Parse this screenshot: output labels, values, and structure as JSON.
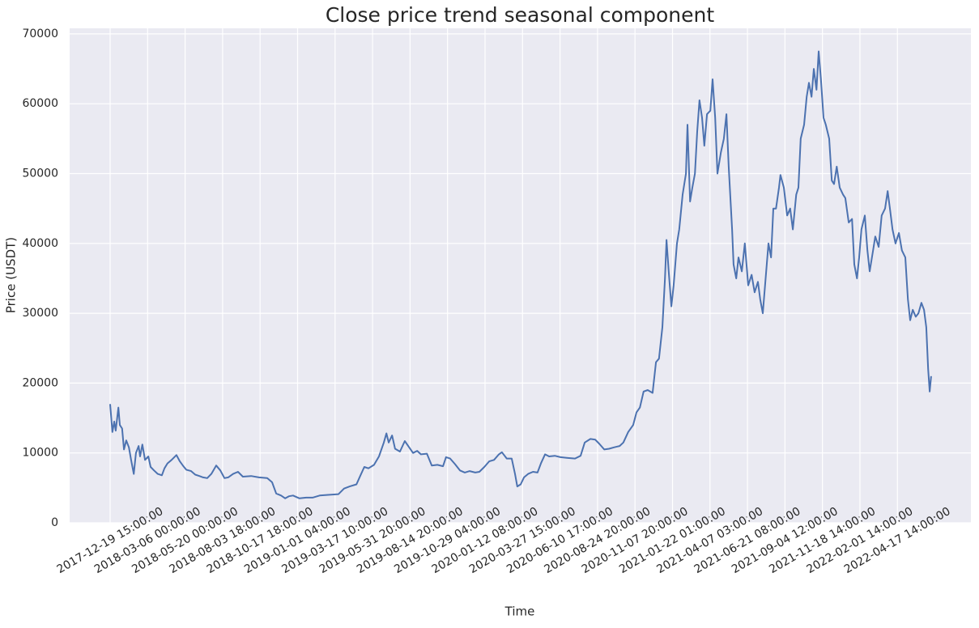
{
  "chart_data": {
    "type": "line",
    "title": "Close price trend seasonal component",
    "x_label": "Time",
    "y_label": "Price (USDT)",
    "grid": true,
    "background": "#eaeaf2",
    "xlim": [
      -1.08,
      22.96
    ],
    "ylim": [
      0,
      70800
    ],
    "xticks": [
      {
        "value": 0,
        "label": "2017-12-19 15:00:00"
      },
      {
        "value": 1,
        "label": "2018-03-06 00:00:00"
      },
      {
        "value": 2,
        "label": "2018-05-20 00:00:00"
      },
      {
        "value": 3,
        "label": "2018-08-03 18:00:00"
      },
      {
        "value": 4,
        "label": "2018-10-17 18:00:00"
      },
      {
        "value": 5,
        "label": "2019-01-01 04:00:00"
      },
      {
        "value": 6,
        "label": "2019-03-17 10:00:00"
      },
      {
        "value": 7,
        "label": "2019-05-31 20:00:00"
      },
      {
        "value": 8,
        "label": "2019-08-14 20:00:00"
      },
      {
        "value": 9,
        "label": "2019-10-29 04:00:00"
      },
      {
        "value": 10,
        "label": "2020-01-12 08:00:00"
      },
      {
        "value": 11,
        "label": "2020-03-27 15:00:00"
      },
      {
        "value": 12,
        "label": "2020-06-10 17:00:00"
      },
      {
        "value": 13,
        "label": "2020-08-24 20:00:00"
      },
      {
        "value": 14,
        "label": "2020-11-07 20:00:00"
      },
      {
        "value": 15,
        "label": "2021-01-22 01:00:00"
      },
      {
        "value": 16,
        "label": "2021-04-07 03:00:00"
      },
      {
        "value": 17,
        "label": "2021-06-21 08:00:00"
      },
      {
        "value": 18,
        "label": "2021-09-04 12:00:00"
      },
      {
        "value": 19,
        "label": "2021-11-18 14:00:00"
      },
      {
        "value": 20,
        "label": "2022-02-01 14:00:00"
      },
      {
        "value": 21,
        "label": "2022-04-17 14:00:00"
      }
    ],
    "yticks": [
      0,
      10000,
      20000,
      30000,
      40000,
      50000,
      60000,
      70000
    ],
    "x": [
      0,
      0.06,
      0.11,
      0.15,
      0.22,
      0.26,
      0.32,
      0.37,
      0.43,
      0.5,
      0.56,
      0.63,
      0.69,
      0.76,
      0.8,
      0.86,
      0.93,
      1.02,
      1.08,
      1.17,
      1.27,
      1.38,
      1.45,
      1.53,
      1.64,
      1.77,
      1.86,
      1.94,
      2.03,
      2.16,
      2.27,
      2.38,
      2.48,
      2.59,
      2.7,
      2.83,
      2.94,
      3.05,
      3.15,
      3.28,
      3.41,
      3.54,
      3.76,
      3.97,
      4.19,
      4.32,
      4.43,
      4.56,
      4.67,
      4.77,
      4.88,
      5.05,
      5.23,
      5.4,
      5.59,
      5.81,
      6.09,
      6.24,
      6.39,
      6.57,
      6.67,
      6.78,
      6.89,
      7.04,
      7.17,
      7.3,
      7.37,
      7.43,
      7.52,
      7.6,
      7.73,
      7.86,
      7.95,
      8.08,
      8.19,
      8.29,
      8.45,
      8.58,
      8.73,
      8.88,
      8.96,
      9.07,
      9.2,
      9.33,
      9.46,
      9.59,
      9.74,
      9.85,
      9.98,
      10.11,
      10.24,
      10.37,
      10.45,
      10.58,
      10.71,
      10.8,
      10.86,
      10.95,
      11.04,
      11.15,
      11.28,
      11.4,
      11.49,
      11.6,
      11.71,
      11.86,
      12.01,
      12.18,
      12.4,
      12.55,
      12.66,
      12.81,
      12.94,
      13.05,
      13.18,
      13.31,
      13.44,
      13.59,
      13.69,
      13.82,
      13.95,
      14.04,
      14.13,
      14.23,
      14.34,
      14.47,
      14.56,
      14.64,
      14.73,
      14.8,
      14.84,
      14.9,
      14.97,
      15.03,
      15.12,
      15.18,
      15.27,
      15.36,
      15.4,
      15.47,
      15.53,
      15.6,
      15.66,
      15.72,
      15.79,
      15.85,
      15.92,
      16.01,
      16.07,
      16.14,
      16.2,
      16.29,
      16.37,
      16.44,
      16.5,
      16.59,
      16.63,
      16.7,
      16.76,
      16.85,
      16.93,
      17.02,
      17.11,
      17.19,
      17.28,
      17.34,
      17.41,
      17.5,
      17.56,
      17.63,
      17.69,
      17.76,
      17.84,
      17.88,
      17.97,
      18.06,
      18.14,
      18.21,
      18.3,
      18.36,
      18.42,
      18.51,
      18.58,
      18.64,
      18.71,
      18.77,
      18.84,
      18.9,
      18.96,
      19.03,
      19.09,
      19.18,
      19.25,
      19.31,
      19.38,
      19.46,
      19.55,
      19.61,
      19.7,
      19.79,
      19.85,
      19.92,
      19.98,
      20.04,
      20.13,
      20.2,
      20.26,
      20.35,
      20.41,
      20.5,
      20.58,
      20.67,
      20.74,
      20.8,
      20.87,
      20.95,
      21.04,
      21.12,
      21.21,
      21.28,
      21.34,
      21.41,
      21.49,
      21.56,
      21.64,
      21.71,
      21.77,
      21.82,
      21.86,
      21.9
    ],
    "series": [
      {
        "color": "#4c72b0",
        "values": [
          17000,
          13000,
          14500,
          13200,
          16500,
          14000,
          13500,
          10500,
          11800,
          10800,
          9000,
          7000,
          10000,
          11000,
          9500,
          11200,
          9000,
          9500,
          8000,
          7500,
          7000,
          6800,
          7800,
          8500,
          9000,
          9700,
          8800,
          8200,
          7600,
          7400,
          6900,
          6700,
          6500,
          6400,
          7000,
          8200,
          7500,
          6400,
          6500,
          7000,
          7300,
          6600,
          6700,
          6500,
          6400,
          5800,
          4200,
          3900,
          3500,
          3800,
          3900,
          3500,
          3600,
          3600,
          3900,
          4000,
          4100,
          4900,
          5200,
          5500,
          6700,
          8000,
          7800,
          8300,
          9500,
          11500,
          12800,
          11500,
          12500,
          10600,
          10200,
          11700,
          11000,
          10000,
          10300,
          9800,
          9900,
          8200,
          8300,
          8100,
          9400,
          9200,
          8400,
          7500,
          7200,
          7400,
          7200,
          7300,
          8000,
          8800,
          9000,
          9800,
          10100,
          9200,
          9200,
          7000,
          5200,
          5500,
          6500,
          7000,
          7300,
          7200,
          8500,
          9800,
          9500,
          9600,
          9400,
          9300,
          9200,
          9600,
          11500,
          12000,
          11900,
          11300,
          10500,
          10600,
          10800,
          11000,
          11500,
          13000,
          14000,
          15800,
          16500,
          18800,
          19000,
          18600,
          23000,
          23500,
          28000,
          35000,
          40500,
          36000,
          31000,
          34000,
          40000,
          42000,
          47000,
          50000,
          57000,
          46000,
          48000,
          50000,
          56000,
          60500,
          58000,
          54000,
          58500,
          59000,
          63500,
          58000,
          50000,
          53000,
          55000,
          58500,
          51000,
          42000,
          37000,
          35000,
          38000,
          36000,
          40000,
          34000,
          35500,
          33000,
          34500,
          32000,
          30000,
          36000,
          40000,
          38000,
          45000,
          45000,
          48000,
          49800,
          48000,
          44000,
          45000,
          42000,
          47000,
          48000,
          55000,
          57000,
          61000,
          63000,
          61000,
          65000,
          62000,
          67500,
          63500,
          58000,
          57000,
          55000,
          49000,
          48500,
          51000,
          48000,
          47000,
          46500,
          43000,
          43500,
          37000,
          35000,
          38000,
          42000,
          44000,
          39000,
          36000,
          39000,
          41000,
          39500,
          44000,
          45000,
          47500,
          45000,
          42000,
          40000,
          41500,
          39000,
          38000,
          32000,
          29000,
          30500,
          29500,
          30000,
          31500,
          30500,
          28000,
          22000,
          18800,
          21000
        ]
      }
    ]
  }
}
